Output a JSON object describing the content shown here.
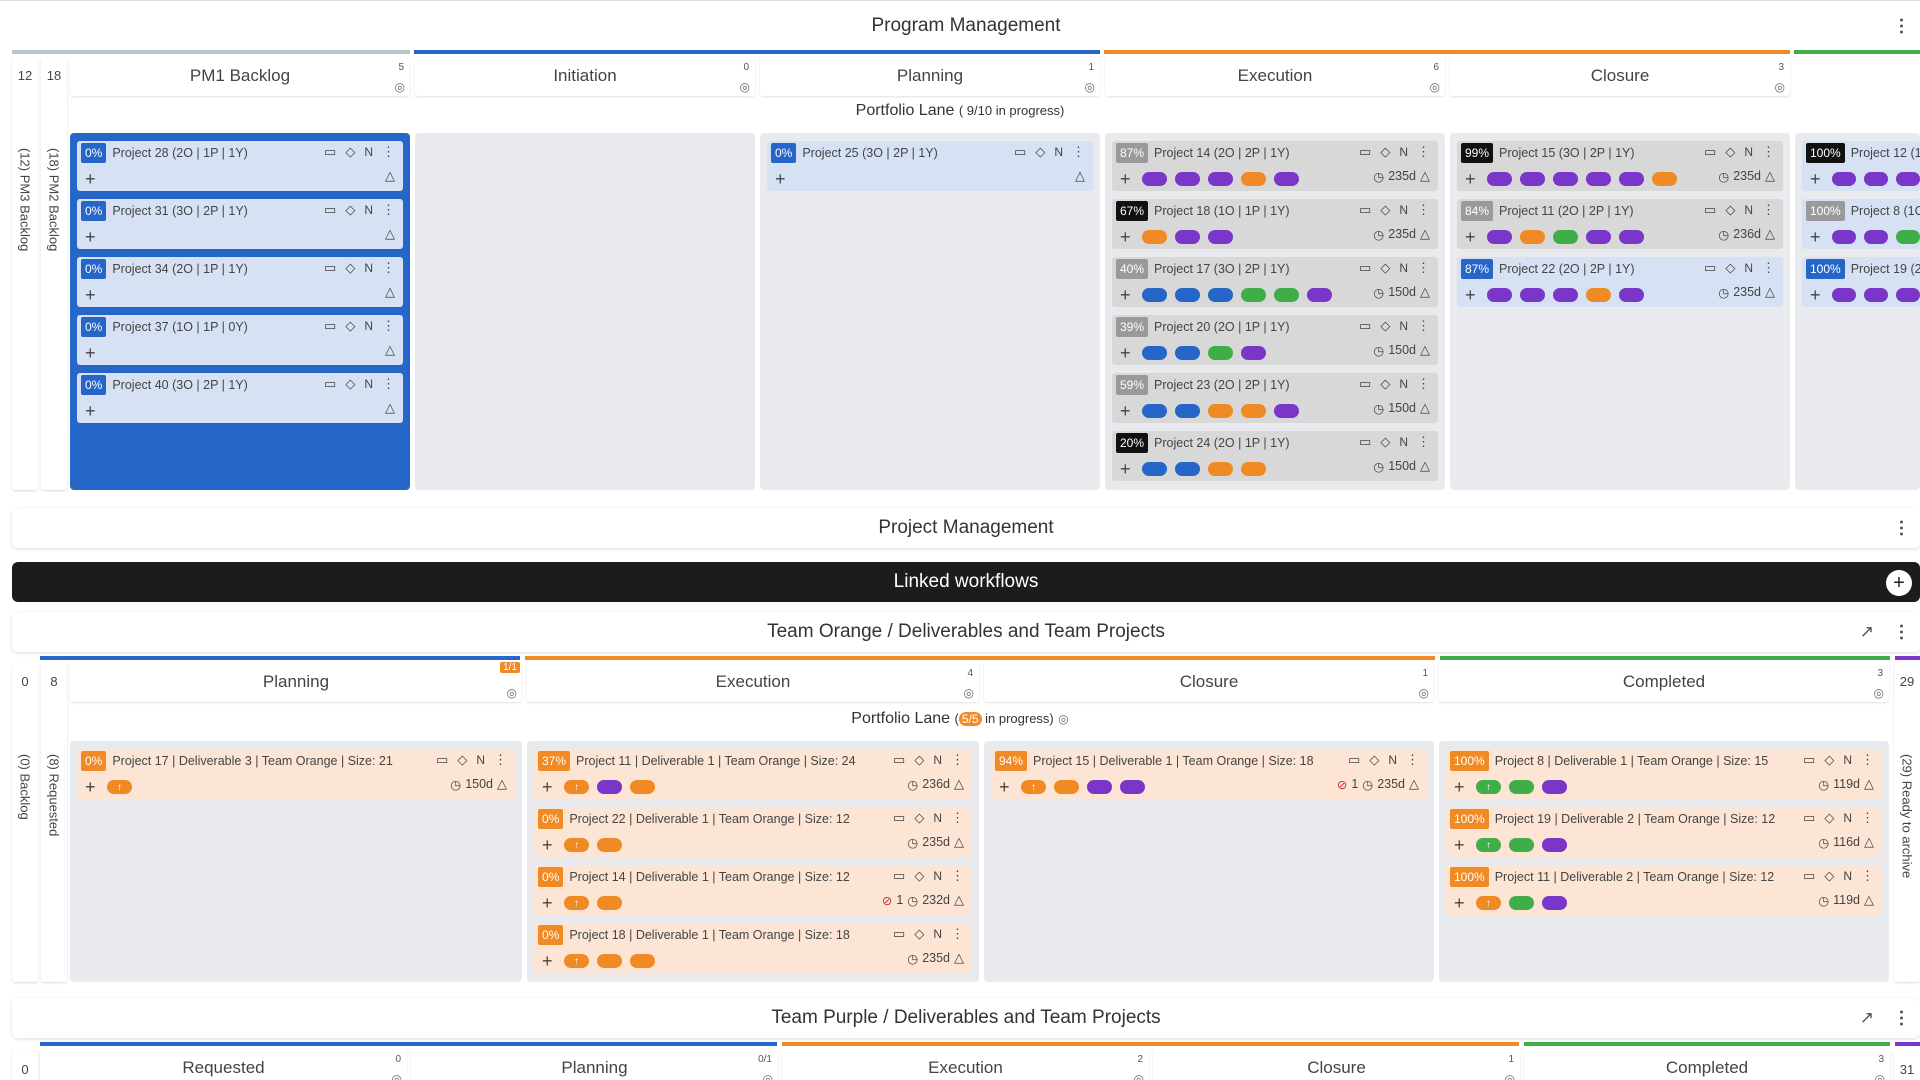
{
  "program": {
    "title": "Program Management"
  },
  "pm_columns": [
    {
      "label": "PM1 Backlog",
      "count": "5"
    },
    {
      "label": "Initiation",
      "count": "0"
    },
    {
      "label": "Planning",
      "count": "1"
    },
    {
      "label": "Execution",
      "count": "6"
    },
    {
      "label": "Closure",
      "count": "3"
    }
  ],
  "pm_side": {
    "a": "12",
    "b": "18",
    "a_label": "(12) PM3 Backlog",
    "b_label": "(18) PM2 Backlog"
  },
  "portfolio1": {
    "title": "Portfolio Lane",
    "progress": "( 9/10  in progress)"
  },
  "colors": {
    "blue": "#2566c8",
    "orange": "#f08a24",
    "green": "#3fae49",
    "purple": "#7a35c9",
    "gray": "#9a9a9a",
    "black": "#111111"
  },
  "pm_cards": {
    "backlog": [
      {
        "pct": "0%",
        "name": "Project 28 (2O | 1P | 1Y)"
      },
      {
        "pct": "0%",
        "name": "Project 31 (3O | 2P | 1Y)"
      },
      {
        "pct": "0%",
        "name": "Project 34 (2O | 1P | 1Y)"
      },
      {
        "pct": "0%",
        "name": "Project 37 (1O | 1P | 0Y)"
      },
      {
        "pct": "0%",
        "name": "Project 40 (3O | 2P | 1Y)"
      }
    ],
    "planning": [
      {
        "pct": "0%",
        "name": "Project 25 (3O | 2P | 1Y)"
      }
    ],
    "execution": [
      {
        "pct": "87%",
        "name": "Project 14 (2O | 2P | 1Y)",
        "days": "235d",
        "pills": [
          "purple",
          "purple",
          "purple",
          "orange",
          "purple"
        ]
      },
      {
        "pct": "67%",
        "name": "Project 18 (1O | 1P | 1Y)",
        "days": "235d",
        "pills": [
          "orange",
          "purple",
          "purple"
        ]
      },
      {
        "pct": "40%",
        "name": "Project 17 (3O | 2P | 1Y)",
        "days": "150d",
        "pills": [
          "blue",
          "blue",
          "blue",
          "green",
          "green",
          "purple"
        ]
      },
      {
        "pct": "39%",
        "name": "Project 20 (2O | 1P | 1Y)",
        "days": "150d",
        "pills": [
          "blue",
          "blue",
          "green",
          "purple"
        ]
      },
      {
        "pct": "59%",
        "name": "Project 23 (2O | 2P | 1Y)",
        "days": "150d",
        "pills": [
          "blue",
          "blue",
          "orange",
          "orange",
          "purple"
        ]
      },
      {
        "pct": "20%",
        "name": "Project 24 (2O | 1P | 1Y)",
        "days": "150d",
        "pills": [
          "blue",
          "blue",
          "orange",
          "orange"
        ]
      }
    ],
    "closure": [
      {
        "pct": "99%",
        "name": "Project 15 (3O | 2P | 1Y)",
        "days": "235d",
        "pills": [
          "purple",
          "purple",
          "purple",
          "purple",
          "purple",
          "orange"
        ]
      },
      {
        "pct": "84%",
        "name": "Project 11 (2O | 2P | 1Y)",
        "days": "236d",
        "pills": [
          "purple",
          "orange",
          "green",
          "purple",
          "purple"
        ]
      },
      {
        "pct": "87%",
        "name": "Project 22 (2O | 2P | 1Y)",
        "days": "235d",
        "pills": [
          "purple",
          "purple",
          "purple",
          "orange",
          "purple"
        ]
      }
    ],
    "next": [
      {
        "pct": "100%",
        "name": "Project 12 (1"
      },
      {
        "pct": "100%",
        "name": "Project 8 (1C"
      },
      {
        "pct": "100%",
        "name": "Project 19 (2"
      }
    ]
  },
  "project_mgmt": {
    "title": "Project Management"
  },
  "linked": {
    "title": "Linked workflows",
    "add": "+"
  },
  "team_orange": {
    "title": "Team Orange / Deliverables and Team Projects",
    "columns": [
      {
        "label": "Planning",
        "count": "1/1"
      },
      {
        "label": "Execution",
        "count": "4"
      },
      {
        "label": "Closure",
        "count": "1"
      },
      {
        "label": "Completed",
        "count": "3"
      }
    ],
    "side_left": {
      "a": "0",
      "b": "8",
      "a_label": "(0) Backlog",
      "b_label": "(8) Requested"
    },
    "side_right": {
      "a": "29",
      "a_label": "(29) Ready to archive"
    },
    "lane": {
      "title": "Portfolio Lane",
      "pre": "(",
      "badge": "5/5",
      "post": " in progress)"
    },
    "cards": {
      "planning": [
        {
          "pct": "0%",
          "name": "Project 17 | Deliverable 3 | Team Orange | Size: 21",
          "days": "150d"
        }
      ],
      "execution": [
        {
          "pct": "37%",
          "name": "Project 11 | Deliverable 1 | Team Orange | Size: 24",
          "days": "236d"
        },
        {
          "pct": "0%",
          "name": "Project 22 | Deliverable 1 | Team Orange | Size: 12",
          "days": "235d"
        },
        {
          "pct": "0%",
          "name": "Project 14 | Deliverable 1 | Team Orange | Size: 12",
          "days": "232d",
          "blocked": "1"
        },
        {
          "pct": "0%",
          "name": "Project 18 | Deliverable 1 | Team Orange | Size: 18",
          "days": "235d"
        }
      ],
      "closure": [
        {
          "pct": "94%",
          "name": "Project 15 | Deliverable 1 | Team Orange | Size: 18",
          "days": "235d",
          "blocked": "1"
        }
      ],
      "completed": [
        {
          "pct": "100%",
          "name": "Project 8 | Deliverable 1 | Team Orange | Size: 15",
          "days": "119d"
        },
        {
          "pct": "100%",
          "name": "Project 19 | Deliverable 2 | Team Orange | Size: 12",
          "days": "116d"
        },
        {
          "pct": "100%",
          "name": "Project 11 | Deliverable 2 | Team Orange | Size: 12",
          "days": "119d"
        }
      ]
    }
  },
  "team_purple": {
    "title": "Team Purple / Deliverables and Team Projects",
    "columns": [
      {
        "label": "Requested",
        "count": "0"
      },
      {
        "label": "Planning",
        "count": "0/1"
      },
      {
        "label": "Execution",
        "count": "2"
      },
      {
        "label": "Closure",
        "count": "1"
      },
      {
        "label": "Completed",
        "count": "3"
      }
    ],
    "side_left": "0",
    "side_right": "31"
  },
  "common": {
    "n": "N",
    "plus": "+"
  }
}
